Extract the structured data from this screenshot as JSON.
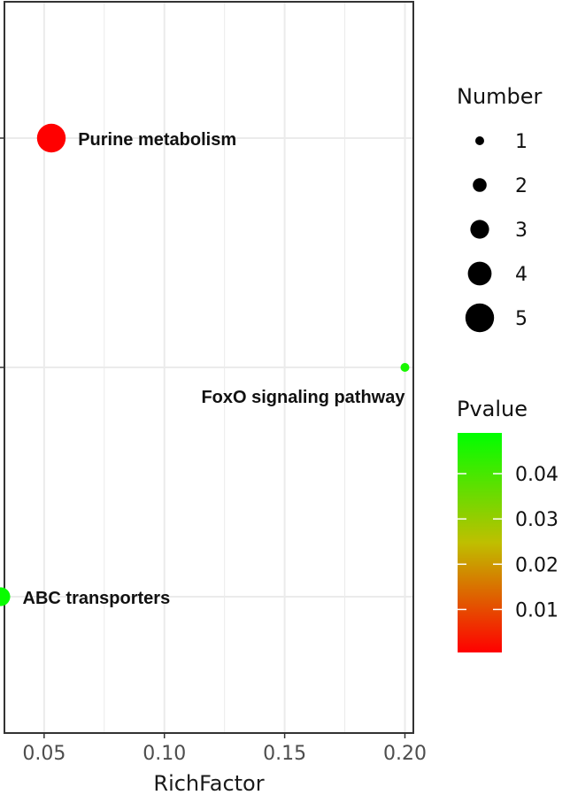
{
  "chart_data": {
    "type": "scatter",
    "xlabel": "RichFactor",
    "ylabel": "",
    "xlim": [
      0.0335,
      0.2035
    ],
    "x_ticks": [
      0.05,
      0.1,
      0.15,
      0.2
    ],
    "x_tick_labels": [
      "0.05",
      "0.10",
      "0.15",
      "0.20"
    ],
    "categories": [
      "ABC transporters",
      "FoxO signaling pathway",
      "Purine metabolism"
    ],
    "points": [
      {
        "label": "Purine metabolism",
        "x": 0.053,
        "number": 5,
        "pvalue": 0.0005
      },
      {
        "label": "FoxO signaling pathway",
        "x": 0.2,
        "number": 1,
        "pvalue": 0.046
      },
      {
        "label": "ABC transporters",
        "x": 0.032,
        "number": 3,
        "pvalue": 0.048
      }
    ],
    "grid": true,
    "size_legend": {
      "title": "Number",
      "values": [
        1,
        2,
        3,
        4,
        5
      ],
      "labels": [
        "1",
        "2",
        "3",
        "4",
        "5"
      ]
    },
    "color_legend": {
      "title": "Pvalue",
      "low_color": "#ff0000",
      "high_color": "#00ff00",
      "range": [
        0.0005,
        0.049
      ],
      "ticks": [
        0.01,
        0.02,
        0.03,
        0.04
      ],
      "tick_labels": [
        "0.01",
        "0.02",
        "0.03",
        "0.04"
      ]
    },
    "legend_position": "right"
  }
}
